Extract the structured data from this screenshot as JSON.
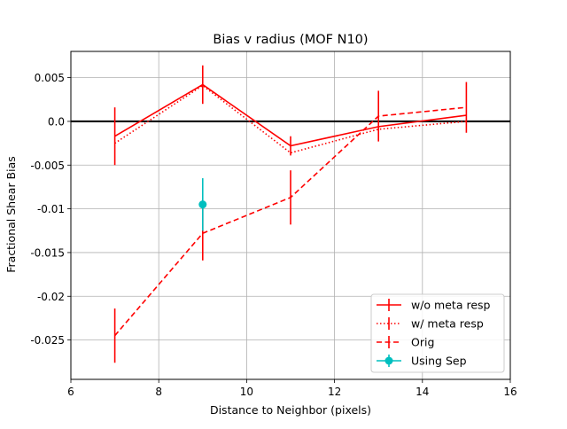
{
  "chart_data": {
    "type": "line",
    "title": "Bias v radius (MOF N10)",
    "xlabel": "Distance to Neighbor (pixels)",
    "ylabel": "Fractional Shear Bias",
    "xlim": [
      6,
      16
    ],
    "ylim": [
      -0.0295,
      0.008
    ],
    "x_ticks": [
      6,
      8,
      10,
      12,
      14,
      16
    ],
    "x_tick_labels": [
      "6",
      "8",
      "10",
      "12",
      "14",
      "16"
    ],
    "y_ticks": [
      0.005,
      0.0,
      -0.005,
      -0.01,
      -0.015,
      -0.02,
      -0.025
    ],
    "y_tick_labels": [
      "0.005",
      "0.0",
      "-0.005",
      "-0.01",
      "-0.015",
      "-0.02",
      "-0.025"
    ],
    "grid": true,
    "legend_position": "lower-right",
    "reference_line": {
      "y": 0.0,
      "color": "#000000"
    },
    "series": [
      {
        "name": "w/o meta resp",
        "style": "solid",
        "color": "#ff0000",
        "marker": "none",
        "x": [
          7,
          9,
          11,
          13,
          15
        ],
        "y": [
          -0.0017,
          0.0042,
          -0.0028,
          -0.0006,
          0.0007
        ],
        "err": [
          0.0033,
          0.0022,
          0.0011,
          0.0,
          0.0
        ]
      },
      {
        "name": "w/ meta resp",
        "style": "dotted",
        "color": "#ff0000",
        "marker": "none",
        "x": [
          7,
          9,
          11,
          13,
          15
        ],
        "y": [
          -0.0025,
          0.0041,
          -0.0036,
          -0.0009,
          0.0
        ],
        "err": [
          0.0,
          0.0,
          0.0,
          0.0,
          0.0
        ]
      },
      {
        "name": "Orig",
        "style": "dashed",
        "color": "#ff0000",
        "marker": "none",
        "x": [
          7,
          9,
          11,
          13,
          15
        ],
        "y": [
          -0.0245,
          -0.0128,
          -0.0087,
          0.0006,
          0.0016
        ],
        "err": [
          0.0031,
          0.0031,
          0.0031,
          0.0029,
          0.0029
        ]
      },
      {
        "name": "Using Sep",
        "style": "solid",
        "color": "#00bfbf",
        "marker": "circle",
        "x": [
          9
        ],
        "y": [
          -0.0095
        ],
        "err": [
          0.003
        ]
      }
    ]
  }
}
